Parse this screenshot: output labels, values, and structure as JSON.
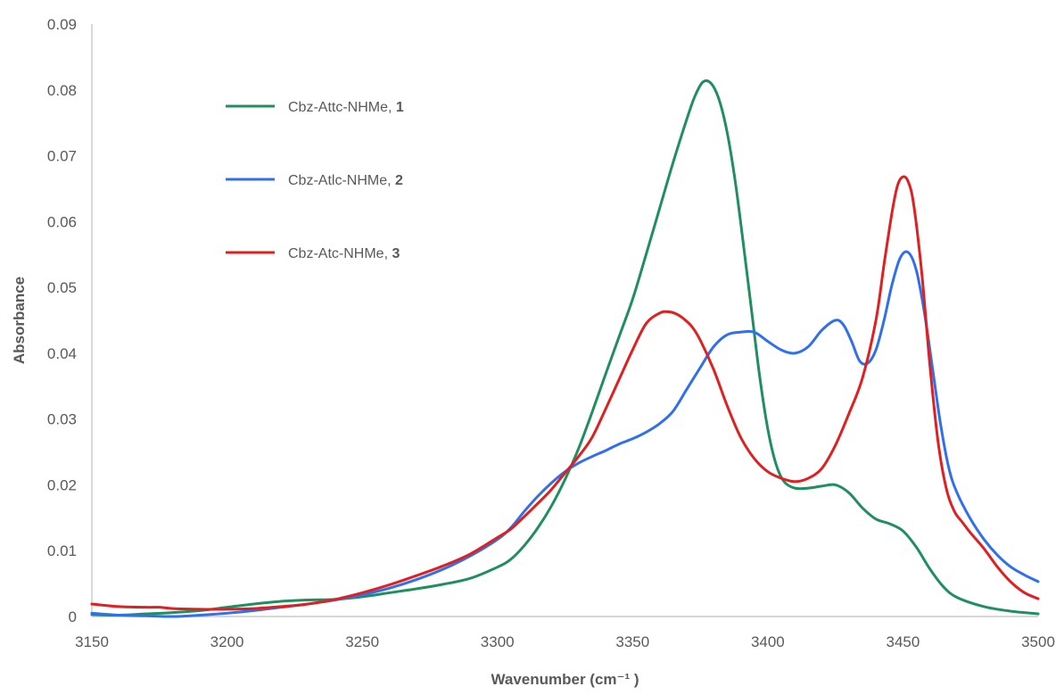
{
  "chart_data": {
    "type": "line",
    "title": "",
    "xlabel": "Wavenumber (cm⁻¹ )",
    "ylabel": "Absorbance",
    "xlim": [
      3150,
      3500
    ],
    "ylim": [
      0,
      0.09
    ],
    "x_ticks": [
      "3150",
      "3200",
      "3250",
      "3300",
      "3350",
      "3400",
      "3450",
      "3500"
    ],
    "y_ticks": [
      "0",
      "0.01",
      "0.02",
      "0.03",
      "0.04",
      "0.05",
      "0.06",
      "0.07",
      "0.08",
      "0.09"
    ],
    "grid": false,
    "legend_position": "top-left",
    "series": [
      {
        "name": "Cbz-Attc-NHMe, ",
        "name_bold": "1",
        "color": "#1f8f5f",
        "x": [
          3150,
          3160,
          3170,
          3180,
          3190,
          3200,
          3210,
          3220,
          3230,
          3240,
          3250,
          3260,
          3270,
          3280,
          3290,
          3300,
          3305,
          3310,
          3315,
          3320,
          3325,
          3330,
          3335,
          3340,
          3345,
          3350,
          3355,
          3360,
          3365,
          3370,
          3373,
          3376,
          3379,
          3382,
          3385,
          3388,
          3391,
          3394,
          3397,
          3400,
          3403,
          3406,
          3410,
          3415,
          3420,
          3425,
          3430,
          3435,
          3440,
          3445,
          3450,
          3455,
          3460,
          3465,
          3470,
          3480,
          3490,
          3500
        ],
        "y": [
          0.0003,
          0.0002,
          0.0004,
          0.0006,
          0.0009,
          0.0014,
          0.0019,
          0.0023,
          0.0025,
          0.0026,
          0.003,
          0.0036,
          0.0042,
          0.0049,
          0.0058,
          0.0075,
          0.0087,
          0.0108,
          0.0135,
          0.0168,
          0.0208,
          0.0255,
          0.031,
          0.0368,
          0.0425,
          0.0482,
          0.055,
          0.062,
          0.069,
          0.0755,
          0.079,
          0.0812,
          0.081,
          0.0785,
          0.0735,
          0.066,
          0.0565,
          0.0465,
          0.0365,
          0.0285,
          0.0232,
          0.0205,
          0.0195,
          0.0195,
          0.0198,
          0.02,
          0.0188,
          0.0165,
          0.0148,
          0.0141,
          0.013,
          0.0105,
          0.0072,
          0.0045,
          0.0029,
          0.0015,
          0.0008,
          0.0004
        ]
      },
      {
        "name": "Cbz-Atlc-NHMe, ",
        "name_bold": "2",
        "color": "#2f6ff0",
        "x": [
          3150,
          3160,
          3170,
          3180,
          3190,
          3200,
          3210,
          3220,
          3230,
          3240,
          3250,
          3260,
          3270,
          3280,
          3290,
          3300,
          3305,
          3310,
          3315,
          3320,
          3325,
          3330,
          3335,
          3340,
          3345,
          3350,
          3355,
          3360,
          3365,
          3370,
          3375,
          3380,
          3385,
          3390,
          3395,
          3400,
          3405,
          3410,
          3415,
          3420,
          3425,
          3428,
          3431,
          3434,
          3437,
          3440,
          3443,
          3446,
          3449,
          3452,
          3455,
          3458,
          3461,
          3464,
          3467,
          3470,
          3475,
          3480,
          3485,
          3490,
          3495,
          3500
        ],
        "y": [
          0.0005,
          0.0002,
          0.0001,
          0.0,
          0.0002,
          0.0005,
          0.0009,
          0.0014,
          0.0019,
          0.0025,
          0.0033,
          0.0043,
          0.0056,
          0.0072,
          0.0092,
          0.0117,
          0.0135,
          0.016,
          0.0183,
          0.0203,
          0.022,
          0.0233,
          0.0243,
          0.0252,
          0.0262,
          0.027,
          0.028,
          0.0293,
          0.0312,
          0.0345,
          0.0378,
          0.041,
          0.0428,
          0.0432,
          0.0432,
          0.0418,
          0.0405,
          0.04,
          0.041,
          0.0435,
          0.045,
          0.0443,
          0.0418,
          0.0388,
          0.0385,
          0.0405,
          0.045,
          0.0505,
          0.0545,
          0.0553,
          0.0525,
          0.046,
          0.0375,
          0.029,
          0.0225,
          0.0188,
          0.0148,
          0.0117,
          0.0093,
          0.0075,
          0.0063,
          0.0053
        ]
      },
      {
        "name": "Cbz-Atc-NHMe, ",
        "name_bold": "3",
        "color": "#e02020",
        "x": [
          3150,
          3160,
          3170,
          3175,
          3180,
          3190,
          3200,
          3210,
          3220,
          3230,
          3240,
          3250,
          3260,
          3270,
          3280,
          3290,
          3300,
          3305,
          3310,
          3315,
          3320,
          3325,
          3330,
          3335,
          3340,
          3345,
          3350,
          3355,
          3360,
          3363,
          3366,
          3369,
          3372,
          3375,
          3380,
          3385,
          3390,
          3395,
          3400,
          3405,
          3410,
          3415,
          3420,
          3425,
          3430,
          3435,
          3440,
          3443,
          3446,
          3448,
          3450,
          3452,
          3454,
          3457,
          3460,
          3463,
          3466,
          3469,
          3472,
          3475,
          3480,
          3485,
          3490,
          3495,
          3500
        ],
        "y": [
          0.0019,
          0.0015,
          0.0014,
          0.0014,
          0.0012,
          0.0011,
          0.0011,
          0.0012,
          0.0015,
          0.0019,
          0.0026,
          0.0036,
          0.0048,
          0.0062,
          0.0077,
          0.0095,
          0.012,
          0.0133,
          0.0152,
          0.0172,
          0.0193,
          0.0218,
          0.0243,
          0.0272,
          0.0315,
          0.036,
          0.0405,
          0.0445,
          0.0461,
          0.0463,
          0.046,
          0.0452,
          0.044,
          0.042,
          0.0375,
          0.032,
          0.0272,
          0.024,
          0.022,
          0.021,
          0.0205,
          0.021,
          0.0225,
          0.026,
          0.0308,
          0.0362,
          0.045,
          0.0535,
          0.0615,
          0.0655,
          0.0668,
          0.066,
          0.0625,
          0.052,
          0.038,
          0.0265,
          0.0195,
          0.016,
          0.0143,
          0.0127,
          0.0103,
          0.0075,
          0.0052,
          0.0036,
          0.0027
        ]
      }
    ]
  }
}
